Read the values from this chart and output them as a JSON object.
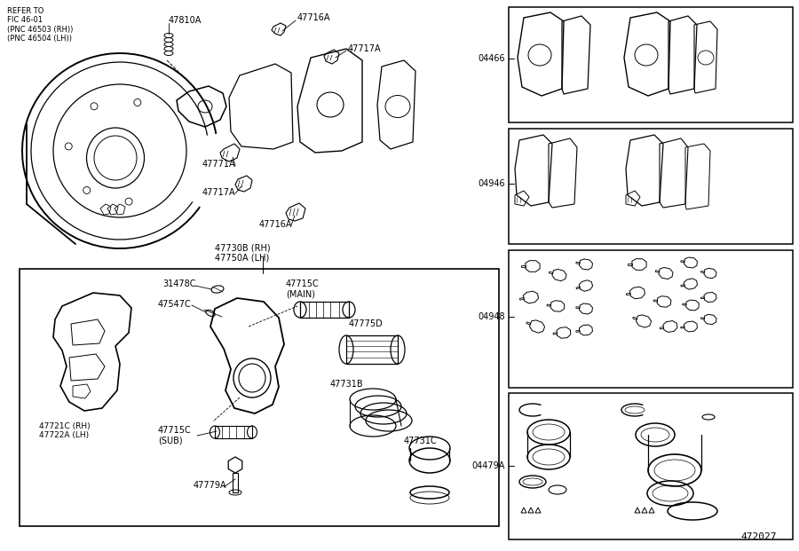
{
  "bg_color": "#ffffff",
  "line_color": "#000000",
  "box_bg": "#ffffff",
  "diagram_id": "472027",
  "labels": {
    "refer_to": "REFER TO\nFIC 46-01\n(PNC 46503 (RH))\n(PNC 46504 (LH))",
    "47810A": "47810A",
    "47716A_top": "47716A",
    "47717A_top": "47717A",
    "47771A": "47771A",
    "47717A_bot": "47717A",
    "47716A_bot": "47716A",
    "47730B": "47730B (RH)\n47750A (LH)",
    "31478C": "31478C",
    "47547C": "47547C",
    "47715C_main": "47715C\n(MAIN)",
    "47775D": "47775D",
    "47731B": "47731B",
    "47715C_sub": "47715C\n(SUB)",
    "47779A": "47779A",
    "47731C": "47731C",
    "47721C": "47721C (RH)\n47722A (LH)",
    "04466": "04466",
    "04946": "04946",
    "04948": "04948",
    "04479A": "04479A"
  }
}
